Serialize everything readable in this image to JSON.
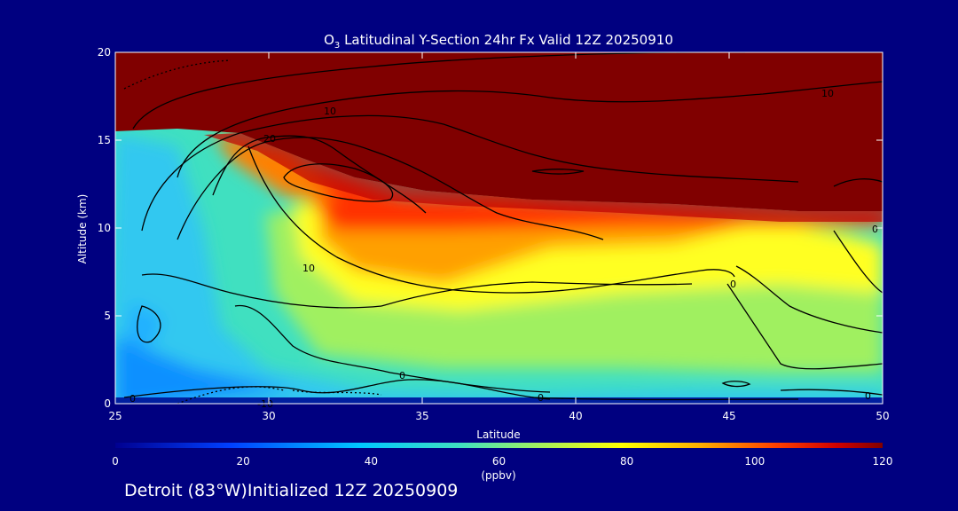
{
  "chart_data": {
    "type": "heatmap",
    "title_prefix": "O",
    "title_sub": "3",
    "title_rest": " Latitudinal Y-Section 24hr  Fx Valid 12Z 20250910",
    "xlabel": "Latitude",
    "ylabel": "Altitude (km)",
    "xlim": [
      25,
      50
    ],
    "ylim": [
      0,
      20
    ],
    "x_ticks": [
      "25",
      "30",
      "35",
      "40",
      "45",
      "50"
    ],
    "y_ticks": [
      "0",
      "5",
      "10",
      "15",
      "20"
    ],
    "colorbar": {
      "label": "(ppbv)",
      "min": 0,
      "max": 120,
      "ticks": [
        "0",
        "20",
        "40",
        "60",
        "80",
        "100",
        "120"
      ]
    },
    "contour_labels": [
      "10",
      "20",
      "10",
      "10",
      "0",
      "-10",
      "0",
      "0",
      "0",
      "0",
      "0"
    ]
  },
  "footer": "Detroit (83°W)Initialized 12Z 20250909",
  "colors": {
    "background": "#000080",
    "text": "#ffffff",
    "contour": "#000000"
  }
}
